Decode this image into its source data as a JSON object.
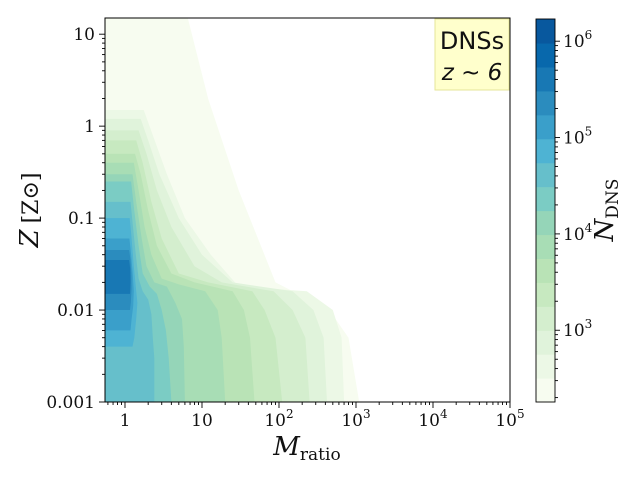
{
  "chart_data": {
    "type": "heatmap",
    "style": "filled-contour",
    "annotation": {
      "line1": "DNSs",
      "line2": "z ~ 6",
      "facecolor": "#ffffcc",
      "edgecolor": "#e6e699"
    },
    "xlabel": {
      "main": "M",
      "sub": "ratio"
    },
    "ylabel": {
      "main": "Z",
      "unit": "[Z⊙]"
    },
    "xscale": "log",
    "yscale": "log",
    "xlim": [
      0.55,
      100000
    ],
    "ylim": [
      0.001,
      15
    ],
    "x_ticks": [
      {
        "value": 1,
        "base": "1",
        "exp": ""
      },
      {
        "value": 10,
        "base": "10",
        "exp": ""
      },
      {
        "value": 100,
        "base": "10",
        "exp": "2"
      },
      {
        "value": 1000,
        "base": "10",
        "exp": "3"
      },
      {
        "value": 10000,
        "base": "10",
        "exp": "4"
      },
      {
        "value": 100000,
        "base": "10",
        "exp": "5"
      }
    ],
    "y_ticks": [
      {
        "value": 10,
        "label": "10"
      },
      {
        "value": 1,
        "label": "1"
      },
      {
        "value": 0.1,
        "label": "0.1"
      },
      {
        "value": 0.01,
        "label": "0.01"
      },
      {
        "value": 0.001,
        "label": "0.001"
      }
    ],
    "colorbar": {
      "label_main": "N",
      "label_sub": "DNS",
      "scale": "log",
      "range": [
        180,
        1700000
      ],
      "colormap": "GnBu",
      "colors": [
        "#f7fcf0",
        "#ecf8e6",
        "#e0f3db",
        "#d4eece",
        "#c7e9c0",
        "#b9e3b6",
        "#a8ddb5",
        "#95d5b8",
        "#7bccc4",
        "#66bfcb",
        "#4eb3d3",
        "#3a9fca",
        "#2b8cbe",
        "#1878b4",
        "#0868ac",
        "#08589e"
      ],
      "ticks": [
        {
          "value": 1000,
          "base": "10",
          "exp": "3"
        },
        {
          "value": 10000,
          "base": "10",
          "exp": "4"
        },
        {
          "value": 100000,
          "base": "10",
          "exp": "5"
        },
        {
          "value": 1000000,
          "base": "10",
          "exp": "6"
        }
      ]
    },
    "contours": [
      {
        "level": 0,
        "x_max": [
          [
            1.9,
            1000
          ],
          [
            2.5,
            300
          ],
          [
            4,
            100
          ],
          [
            6,
            20
          ],
          [
            12,
            2
          ],
          [
            30,
            0.2
          ],
          [
            90,
            0.02
          ],
          [
            450,
            0.01
          ],
          [
            800,
            0.005
          ],
          [
            1100,
            0.001
          ]
        ]
      },
      {
        "level": 1,
        "x_max": [
          [
            1.75,
            1.5
          ],
          [
            2.3,
            0.8
          ],
          [
            3.5,
            0.3
          ],
          [
            6,
            0.1
          ],
          [
            13,
            0.04
          ],
          [
            30,
            0.018
          ],
          [
            230,
            0.016
          ],
          [
            500,
            0.01
          ],
          [
            650,
            0.005
          ],
          [
            700,
            0.001
          ]
        ]
      },
      {
        "level": 2,
        "x_max": [
          [
            1.6,
            1.2
          ],
          [
            2,
            0.7
          ],
          [
            2.8,
            0.3
          ],
          [
            5,
            0.1
          ],
          [
            10,
            0.04
          ],
          [
            25,
            0.02
          ],
          [
            150,
            0.016
          ],
          [
            280,
            0.01
          ],
          [
            380,
            0.005
          ],
          [
            420,
            0.001
          ]
        ]
      },
      {
        "level": 3,
        "x_max": [
          [
            1.5,
            0.9
          ],
          [
            1.9,
            0.5
          ],
          [
            2.6,
            0.2
          ],
          [
            4,
            0.08
          ],
          [
            8,
            0.03
          ],
          [
            18,
            0.02
          ],
          [
            85,
            0.016
          ],
          [
            150,
            0.01
          ],
          [
            220,
            0.005
          ],
          [
            250,
            0.001
          ]
        ]
      },
      {
        "level": 4,
        "x_max": [
          [
            1.4,
            0.7
          ],
          [
            1.7,
            0.4
          ],
          [
            2.2,
            0.15
          ],
          [
            3,
            0.06
          ],
          [
            5,
            0.025
          ],
          [
            12,
            0.02
          ],
          [
            45,
            0.016
          ],
          [
            65,
            0.01
          ],
          [
            90,
            0.005
          ],
          [
            110,
            0.001
          ]
        ]
      },
      {
        "level": 5,
        "x_max": [
          [
            1.35,
            0.5
          ],
          [
            1.6,
            0.3
          ],
          [
            2,
            0.12
          ],
          [
            2.6,
            0.05
          ],
          [
            4,
            0.025
          ],
          [
            8,
            0.02
          ],
          [
            25,
            0.016
          ],
          [
            35,
            0.01
          ],
          [
            42,
            0.005
          ],
          [
            48,
            0.001
          ]
        ]
      },
      {
        "level": 6,
        "x_max": [
          [
            1.3,
            0.4
          ],
          [
            1.5,
            0.2
          ],
          [
            1.8,
            0.08
          ],
          [
            2.2,
            0.04
          ],
          [
            3,
            0.022
          ],
          [
            5,
            0.019
          ],
          [
            11,
            0.016
          ],
          [
            16,
            0.01
          ],
          [
            18,
            0.005
          ],
          [
            20,
            0.001
          ]
        ]
      },
      {
        "level": 7,
        "x_max": [
          [
            1.25,
            0.3
          ],
          [
            1.4,
            0.15
          ],
          [
            1.65,
            0.06
          ],
          [
            1.9,
            0.03
          ],
          [
            2.4,
            0.02
          ],
          [
            3.5,
            0.018
          ],
          [
            4.5,
            0.012
          ],
          [
            5.5,
            0.008
          ],
          [
            5.8,
            0.004
          ],
          [
            6,
            0.001
          ]
        ]
      },
      {
        "level": 8,
        "x_max": [
          [
            1.2,
            0.25
          ],
          [
            1.32,
            0.12
          ],
          [
            1.5,
            0.05
          ],
          [
            1.7,
            0.025
          ],
          [
            2.1,
            0.018
          ],
          [
            2.6,
            0.015
          ],
          [
            3,
            0.01
          ],
          [
            3.4,
            0.006
          ],
          [
            3.7,
            0.003
          ],
          [
            4,
            0.001
          ]
        ]
      },
      {
        "level": 9,
        "x_max": [
          [
            1.18,
            0.15
          ],
          [
            1.27,
            0.08
          ],
          [
            1.38,
            0.04
          ],
          [
            1.5,
            0.022
          ],
          [
            1.7,
            0.016
          ],
          [
            2,
            0.013
          ],
          [
            2.2,
            0.009
          ],
          [
            2.3,
            0.005
          ],
          [
            2.4,
            0.003
          ],
          [
            2.4,
            0.001
          ]
        ]
      },
      {
        "level": 10,
        "x_max": [
          [
            1.15,
            0.1
          ],
          [
            1.22,
            0.06
          ],
          [
            1.3,
            0.03
          ],
          [
            1.38,
            0.018
          ],
          [
            1.45,
            0.012
          ],
          [
            1.4,
            0.008
          ],
          [
            1.32,
            0.005
          ],
          [
            1.25,
            0.004
          ]
        ]
      },
      {
        "level": 11,
        "x_max": [
          [
            1.14,
            0.06
          ],
          [
            1.2,
            0.04
          ],
          [
            1.26,
            0.025
          ],
          [
            1.3,
            0.016
          ],
          [
            1.28,
            0.011
          ],
          [
            1.22,
            0.008
          ],
          [
            1.18,
            0.006
          ]
        ]
      },
      {
        "level": 12,
        "x_max": [
          [
            1.13,
            0.045
          ],
          [
            1.18,
            0.035
          ],
          [
            1.21,
            0.025
          ],
          [
            1.22,
            0.017
          ],
          [
            1.19,
            0.012
          ],
          [
            1.16,
            0.01
          ]
        ]
      },
      {
        "level": 13,
        "x_max": [
          [
            1.13,
            0.035
          ],
          [
            1.17,
            0.028
          ],
          [
            1.18,
            0.02
          ],
          [
            1.16,
            0.015
          ]
        ]
      }
    ]
  }
}
